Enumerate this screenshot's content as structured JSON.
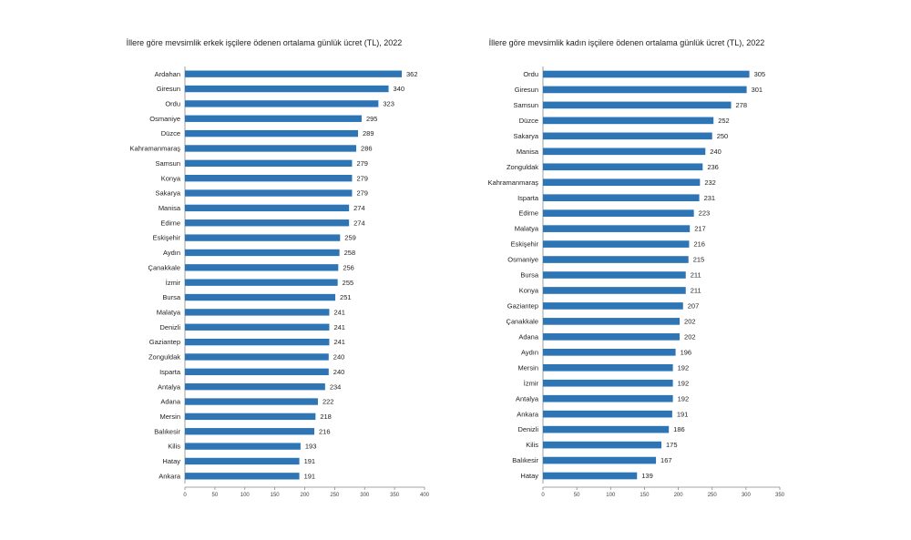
{
  "chart_data": [
    {
      "type": "bar",
      "orientation": "horizontal",
      "title": "İllere göre mevsimlik erkek işçilere ödenen ortalama günlük ücret (TL), 2022",
      "categories": [
        "Ardahan",
        "Giresun",
        "Ordu",
        "Osmaniye",
        "Düzce",
        "Kahramanmaraş",
        "Samsun",
        "Konya",
        "Sakarya",
        "Manisa",
        "Edirne",
        "Eskişehir",
        "Aydın",
        "Çanakkale",
        "İzmir",
        "Bursa",
        "Malatya",
        "Denizli",
        "Gaziantep",
        "Zonguldak",
        "Isparta",
        "Antalya",
        "Adana",
        "Mersin",
        "Balıkesir",
        "Kilis",
        "Hatay",
        "Ankara"
      ],
      "values": [
        362,
        340,
        323,
        295,
        289,
        286,
        279,
        279,
        279,
        274,
        274,
        259,
        258,
        256,
        255,
        251,
        241,
        241,
        241,
        240,
        240,
        234,
        222,
        218,
        216,
        193,
        191,
        191
      ],
      "value_labels": [
        "362",
        "340",
        "323",
        "295",
        "289",
        "286",
        "279",
        "279",
        "279",
        "274",
        "274",
        "259",
        "258",
        "256",
        "255",
        "251",
        "241",
        "241",
        "241",
        "240",
        "240",
        "234",
        "222",
        "218",
        "216",
        "193",
        "191",
        "191"
      ],
      "xlim": [
        0,
        400
      ],
      "x_ticks": [
        "0",
        "50",
        "100",
        "150",
        "200",
        "250",
        "300",
        "350",
        "400"
      ],
      "grid": false,
      "legend": "none",
      "bar_color": "#2e75b6"
    },
    {
      "type": "bar",
      "orientation": "horizontal",
      "title": "İllere göre mevsimlik kadın işçilere ödenen ortalama günlük ücret (TL), 2022",
      "categories": [
        "Ordu",
        "Giresun",
        "Samsun",
        "Düzce",
        "Sakarya",
        "Manisa",
        "Zonguldak",
        "Kahramanmaraş",
        "Isparta",
        "Edirne",
        "Malatya",
        "Eskişehir",
        "Osmaniye",
        "Bursa",
        "Konya",
        "Gaziantep",
        "Çanakkale",
        "Adana",
        "Aydın",
        "Mersin",
        "İzmir",
        "Antalya",
        "Ankara",
        "Denizli",
        "Kilis",
        "Balıkesir",
        "Hatay"
      ],
      "values": [
        305,
        301,
        278,
        252,
        250,
        240,
        236,
        232,
        231,
        223,
        217,
        216,
        215,
        211,
        211,
        207,
        202,
        202,
        196,
        192,
        192,
        192,
        191,
        186,
        175,
        167,
        139
      ],
      "value_labels": [
        "305",
        "301",
        "278",
        "252",
        "250",
        "240",
        "236",
        "232",
        "231",
        "223",
        "217",
        "216",
        "215",
        "211",
        "211",
        "207",
        "202",
        "202",
        "196",
        "192",
        "192",
        "192",
        "191",
        "186",
        "175",
        "167",
        "139"
      ],
      "xlim": [
        0,
        350
      ],
      "x_ticks": [
        "0",
        "50",
        "100",
        "150",
        "200",
        "250",
        "300",
        "350"
      ],
      "grid": false,
      "legend": "none",
      "bar_color": "#2e75b6"
    }
  ]
}
